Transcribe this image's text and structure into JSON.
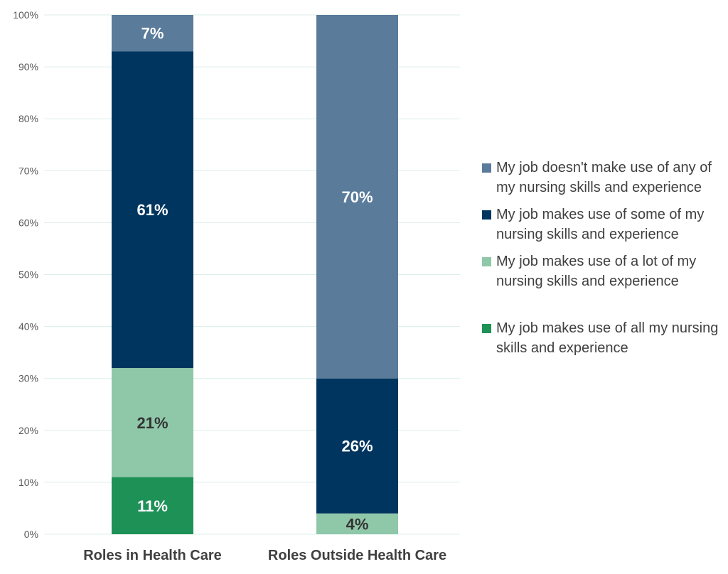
{
  "chart_data": {
    "type": "bar",
    "stacked": true,
    "categories": [
      "Roles in Health Care",
      "Roles Outside Health Care"
    ],
    "series": [
      {
        "name": "My job makes use of all my nursing skills and experience",
        "color": "#1E9156",
        "label_color": "#ffffff",
        "values": [
          11,
          0
        ]
      },
      {
        "name": "My job makes use of a lot of my nursing skills and experience",
        "color": "#8FC7A9",
        "label_color": "#333333",
        "values": [
          21,
          4
        ]
      },
      {
        "name": "My job makes use of some of my nursing skills and experience",
        "color": "#00355F",
        "label_color": "#ffffff",
        "values": [
          61,
          26
        ]
      },
      {
        "name": "My job doesn't make use of any of my nursing skills and experience",
        "color": "#5A7B9A",
        "label_color": "#ffffff",
        "values": [
          7,
          70
        ]
      }
    ],
    "data_labels": [
      [
        "11%",
        "21%",
        "61%",
        "7%"
      ],
      [
        "",
        "4%",
        "26%",
        "70%"
      ]
    ],
    "ylim": [
      0,
      100
    ],
    "yticks": [
      "0%",
      "10%",
      "20%",
      "30%",
      "40%",
      "50%",
      "60%",
      "70%",
      "80%",
      "90%",
      "100%"
    ],
    "grid": true,
    "grid_color": "#DCEFEA",
    "legend_position": "right",
    "legend_order": [
      3,
      2,
      1,
      0
    ]
  }
}
